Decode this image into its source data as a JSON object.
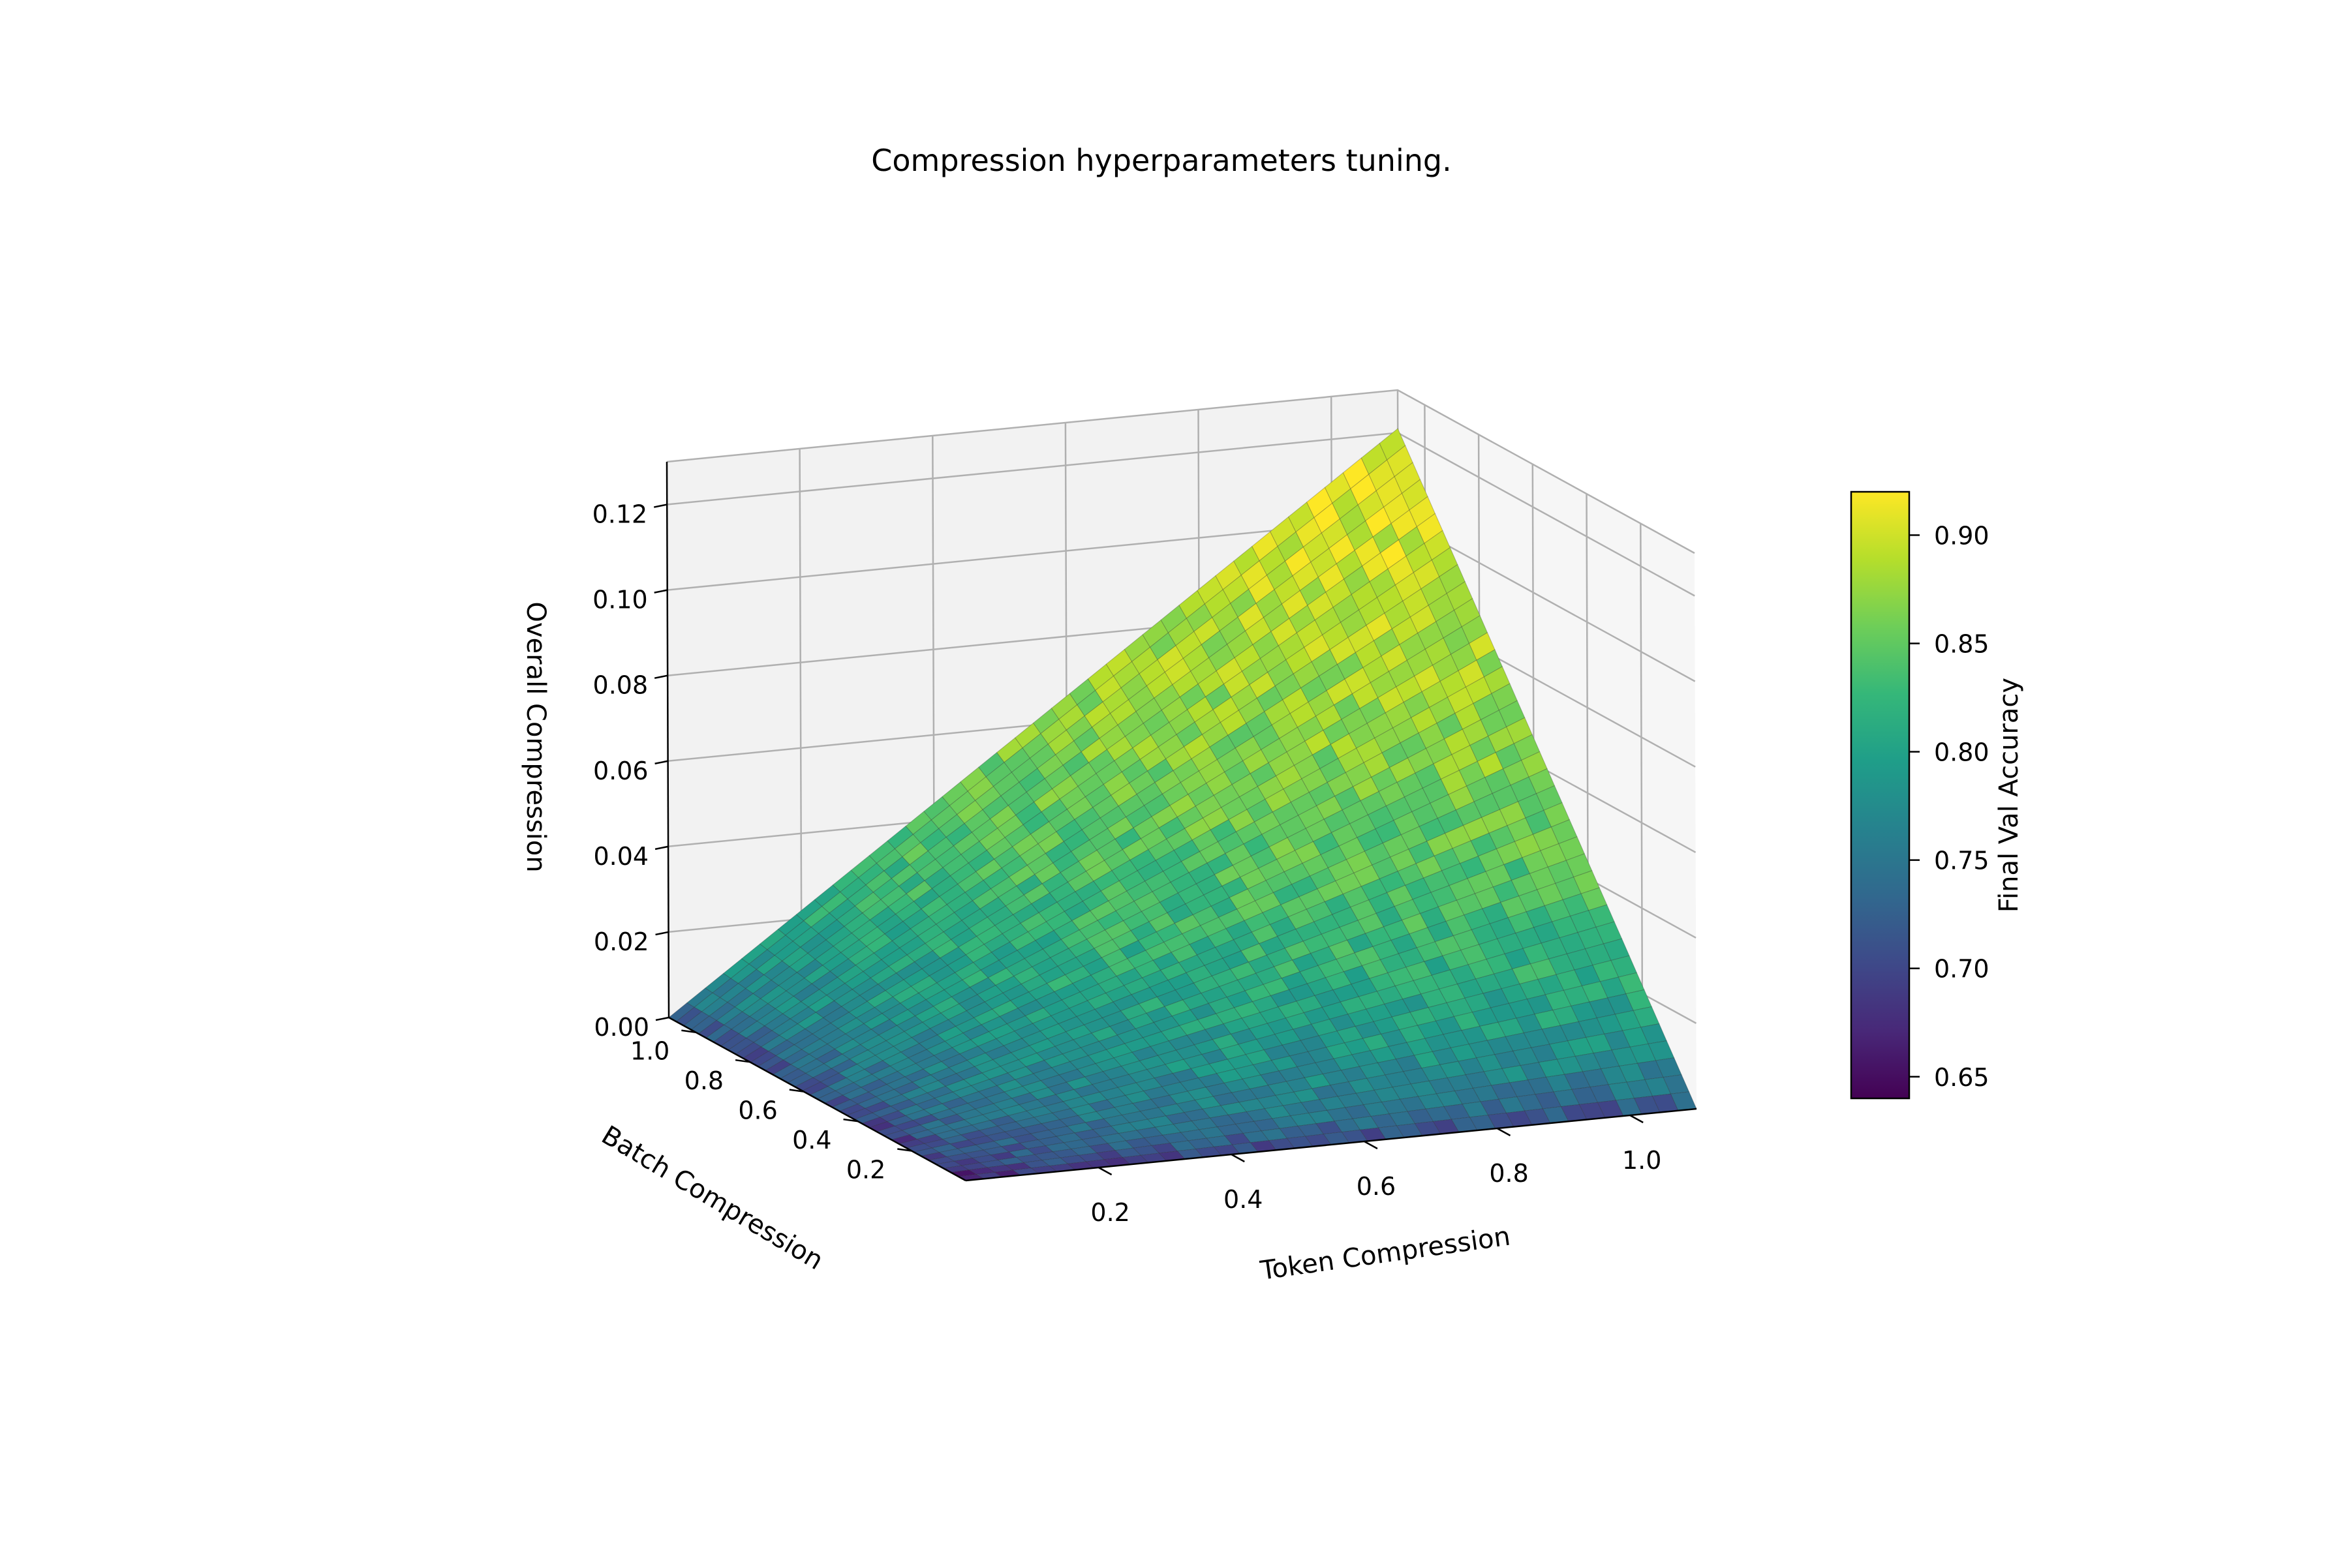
{
  "chart_data": {
    "type": "surface3d",
    "title": "Compression hyperparameters tuning.",
    "xlabel": "Token Compression",
    "ylabel": "Batch Compression",
    "zlabel": "Overall Compression",
    "colorbar_label": "Final Val Accuracy",
    "colormap": "viridis",
    "colormap_stops": [
      "#440154",
      "#482878",
      "#3e4989",
      "#31688e",
      "#26828e",
      "#1f9e89",
      "#35b779",
      "#6ece58",
      "#b5de2b",
      "#fde725"
    ],
    "grid": true,
    "xlim": [
      0.0,
      1.1
    ],
    "ylim": [
      0.0,
      1.1
    ],
    "zlim": [
      0.0,
      0.13
    ],
    "x_ticks": [
      "0.2",
      "0.4",
      "0.6",
      "0.8",
      "1.0"
    ],
    "y_ticks": [
      "0.2",
      "0.4",
      "0.6",
      "0.8",
      "1.0"
    ],
    "z_ticks": [
      "0.00",
      "0.02",
      "0.04",
      "0.06",
      "0.08",
      "0.10",
      "0.12"
    ],
    "x_tick_values": [
      0.2,
      0.4,
      0.6,
      0.8,
      1.0
    ],
    "y_tick_values": [
      0.2,
      0.4,
      0.6,
      0.8,
      1.0
    ],
    "z_tick_values": [
      0.0,
      0.02,
      0.04,
      0.06,
      0.08,
      0.1,
      0.12
    ],
    "colorbar_ticks": [
      "0.65",
      "0.70",
      "0.75",
      "0.80",
      "0.85",
      "0.90"
    ],
    "colorbar_tick_values": [
      0.65,
      0.7,
      0.75,
      0.8,
      0.85,
      0.9
    ],
    "colorbar_range": [
      0.64,
      0.92
    ],
    "surface": {
      "x_range": [
        0.0,
        1.1
      ],
      "y_range": [
        0.0,
        1.1
      ],
      "resolution": 40,
      "z_formula": "x * y / 10",
      "color_value_min": 0.65,
      "color_value_max": 0.915
    }
  }
}
